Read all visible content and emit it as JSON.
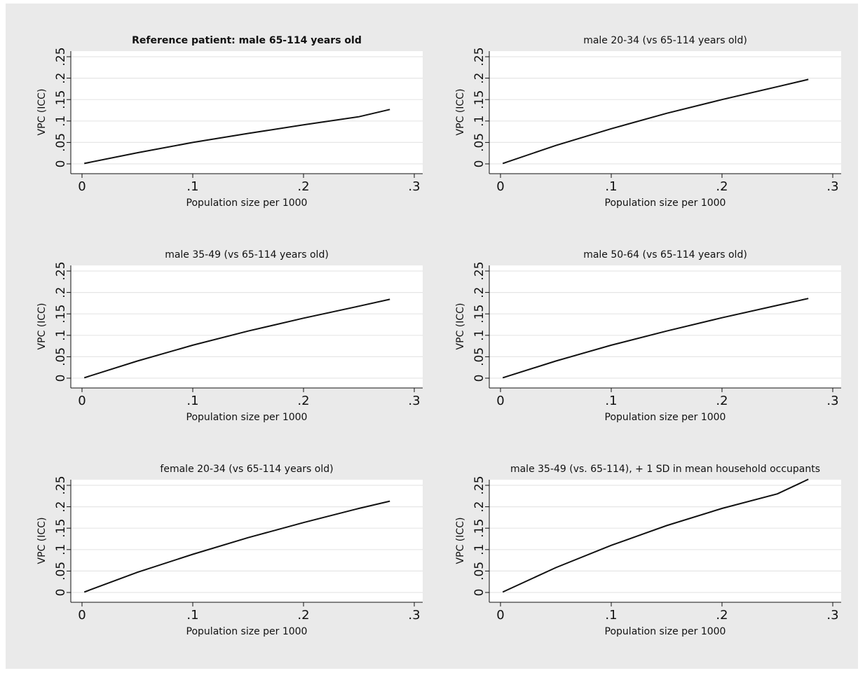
{
  "colors": {
    "background": "#eaeaea",
    "plot_background": "#ffffff",
    "line": "#111111"
  },
  "chart_data": [
    {
      "type": "line",
      "title": "Reference patient: male 65-114 years old",
      "title_bold": true,
      "xlabel": "Population size per 1000",
      "ylabel": "VPC (ICC)",
      "xlim": [
        0,
        0.3
      ],
      "ylim": [
        0,
        0.25
      ],
      "xticks": [
        0,
        0.1,
        0.2,
        0.3
      ],
      "xtick_labels": [
        "0",
        ".1",
        ".2",
        ".3"
      ],
      "yticks": [
        0,
        0.05,
        0.1,
        0.15,
        0.2,
        0.25
      ],
      "ytick_labels": [
        "0",
        ".05",
        ".1",
        ".15",
        ".2",
        ".25"
      ],
      "grid": true,
      "series": [
        {
          "x": [
            0.002,
            0.05,
            0.1,
            0.15,
            0.2,
            0.25,
            0.278
          ],
          "y": [
            0.001,
            0.026,
            0.05,
            0.071,
            0.091,
            0.11,
            0.127
          ]
        }
      ]
    },
    {
      "type": "line",
      "title": "male 20-34 (vs 65-114 years old)",
      "title_bold": false,
      "xlabel": "Population size per 1000",
      "ylabel": "VPC (ICC)",
      "xlim": [
        0,
        0.3
      ],
      "ylim": [
        0,
        0.25
      ],
      "xticks": [
        0,
        0.1,
        0.2,
        0.3
      ],
      "xtick_labels": [
        "0",
        ".1",
        ".2",
        ".3"
      ],
      "yticks": [
        0,
        0.05,
        0.1,
        0.15,
        0.2,
        0.25
      ],
      "ytick_labels": [
        "0",
        ".05",
        ".1",
        ".15",
        ".2",
        ".25"
      ],
      "grid": true,
      "series": [
        {
          "x": [
            0.002,
            0.05,
            0.1,
            0.15,
            0.2,
            0.25,
            0.278
          ],
          "y": [
            0.001,
            0.043,
            0.082,
            0.118,
            0.15,
            0.18,
            0.197
          ]
        }
      ]
    },
    {
      "type": "line",
      "title": "male 35-49 (vs 65-114 years old)",
      "title_bold": false,
      "xlabel": "Population size per 1000",
      "ylabel": "VPC (ICC)",
      "xlim": [
        0,
        0.3
      ],
      "ylim": [
        0,
        0.25
      ],
      "xticks": [
        0,
        0.1,
        0.2,
        0.3
      ],
      "xtick_labels": [
        "0",
        ".1",
        ".2",
        ".3"
      ],
      "yticks": [
        0,
        0.05,
        0.1,
        0.15,
        0.2,
        0.25
      ],
      "ytick_labels": [
        "0",
        ".05",
        ".1",
        ".15",
        ".2",
        ".25"
      ],
      "grid": true,
      "series": [
        {
          "x": [
            0.002,
            0.05,
            0.1,
            0.15,
            0.2,
            0.25,
            0.278
          ],
          "y": [
            0.001,
            0.04,
            0.077,
            0.11,
            0.14,
            0.168,
            0.184
          ]
        }
      ]
    },
    {
      "type": "line",
      "title": "male 50-64 (vs 65-114 years old)",
      "title_bold": false,
      "xlabel": "Population size per 1000",
      "ylabel": "VPC (ICC)",
      "xlim": [
        0,
        0.3
      ],
      "ylim": [
        0,
        0.25
      ],
      "xticks": [
        0,
        0.1,
        0.2,
        0.3
      ],
      "xtick_labels": [
        "0",
        ".1",
        ".2",
        ".3"
      ],
      "yticks": [
        0,
        0.05,
        0.1,
        0.15,
        0.2,
        0.25
      ],
      "ytick_labels": [
        "0",
        ".05",
        ".1",
        ".15",
        ".2",
        ".25"
      ],
      "grid": true,
      "series": [
        {
          "x": [
            0.002,
            0.05,
            0.1,
            0.15,
            0.2,
            0.25,
            0.278
          ],
          "y": [
            0.001,
            0.04,
            0.077,
            0.11,
            0.141,
            0.17,
            0.186
          ]
        }
      ]
    },
    {
      "type": "line",
      "title": "female 20-34 (vs 65-114 years old)",
      "title_bold": false,
      "xlabel": "Population size per 1000",
      "ylabel": "VPC (ICC)",
      "xlim": [
        0,
        0.3
      ],
      "ylim": [
        0,
        0.25
      ],
      "xticks": [
        0,
        0.1,
        0.2,
        0.3
      ],
      "xtick_labels": [
        "0",
        ".1",
        ".2",
        ".3"
      ],
      "yticks": [
        0,
        0.05,
        0.1,
        0.15,
        0.2,
        0.25
      ],
      "ytick_labels": [
        "0",
        ".05",
        ".1",
        ".15",
        ".2",
        ".25"
      ],
      "grid": true,
      "series": [
        {
          "x": [
            0.002,
            0.05,
            0.1,
            0.15,
            0.2,
            0.25,
            0.278
          ],
          "y": [
            0.001,
            0.047,
            0.089,
            0.128,
            0.163,
            0.196,
            0.213
          ]
        }
      ]
    },
    {
      "type": "line",
      "title": "male 35-49 (vs. 65-114), + 1 SD in mean household occupants",
      "title_bold": false,
      "xlabel": "Population size per 1000",
      "ylabel": "VPC (ICC)",
      "xlim": [
        0,
        0.3
      ],
      "ylim": [
        0,
        0.25
      ],
      "xticks": [
        0,
        0.1,
        0.2,
        0.3
      ],
      "xtick_labels": [
        "0",
        ".1",
        ".2",
        ".3"
      ],
      "yticks": [
        0,
        0.05,
        0.1,
        0.15,
        0.2,
        0.25
      ],
      "ytick_labels": [
        "0",
        ".05",
        ".1",
        ".15",
        ".2",
        ".25"
      ],
      "grid": true,
      "series": [
        {
          "x": [
            0.002,
            0.05,
            0.1,
            0.15,
            0.2,
            0.25,
            0.278
          ],
          "y": [
            0.001,
            0.058,
            0.11,
            0.156,
            0.196,
            0.23,
            0.264
          ]
        }
      ]
    }
  ]
}
